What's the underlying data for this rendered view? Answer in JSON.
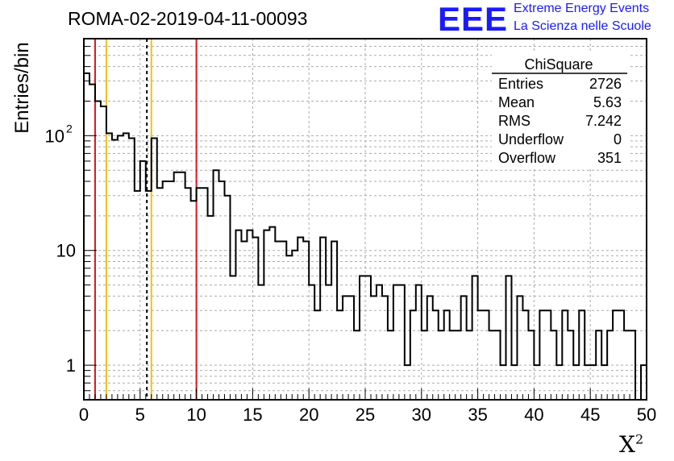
{
  "header": {
    "title": "ROMA-02-2019-04-11-00093",
    "logo_mark": "EEE",
    "logo_line1": "Extreme Energy Events",
    "logo_line2": "La Scienza nelle Scuole"
  },
  "colors": {
    "red": "#e0141e",
    "yellow": "#f0c018",
    "logo": "#1a1aff"
  },
  "chart_data": {
    "type": "histogram",
    "xlabel": "X",
    "xlabel_sup": "2",
    "ylabel": "Entries/bin",
    "xlim": [
      0,
      50
    ],
    "ylim": [
      0.5,
      700
    ],
    "yscale": "log",
    "grid": true,
    "bin_width": 0.5,
    "xticks": [
      "0",
      "5",
      "10",
      "15",
      "20",
      "25",
      "30",
      "35",
      "40",
      "45",
      "50"
    ],
    "yticks": [
      {
        "value": 1,
        "label": "1"
      },
      {
        "value": 10,
        "label": "10"
      },
      {
        "value": 100,
        "label": "10",
        "sup": "2"
      }
    ],
    "values": [
      350,
      280,
      200,
      180,
      105,
      92,
      100,
      105,
      95,
      33,
      60,
      33,
      95,
      35,
      40,
      40,
      48,
      48,
      35,
      27,
      35,
      35,
      20,
      50,
      40,
      30,
      6,
      15,
      12,
      15,
      13,
      5,
      15,
      16,
      12,
      12,
      9,
      10,
      13,
      12,
      5,
      3,
      13,
      5,
      12,
      3,
      4,
      4,
      2,
      6,
      6,
      4,
      5,
      4,
      2,
      5,
      5,
      1,
      3,
      5,
      2,
      4,
      3,
      2,
      3,
      2,
      2,
      4,
      2,
      6,
      3,
      3,
      2,
      2,
      1,
      6,
      1,
      4,
      3,
      2,
      1,
      3,
      3,
      2,
      1,
      3,
      2,
      1,
      3,
      1,
      1,
      2,
      1,
      2,
      3,
      3,
      2,
      2,
      0.5,
      1
    ],
    "vlines": [
      {
        "x": 1.0,
        "color": "red",
        "style": "solid"
      },
      {
        "x": 2.0,
        "color": "yellow",
        "style": "solid"
      },
      {
        "x": 5.6,
        "color": "black",
        "style": "dashed"
      },
      {
        "x": 6.0,
        "color": "yellow",
        "style": "solid"
      },
      {
        "x": 10.0,
        "color": "red",
        "style": "solid"
      }
    ],
    "stats": {
      "title": "ChiSquare",
      "rows": [
        {
          "label": "Entries",
          "value": "2726"
        },
        {
          "label": "Mean",
          "value": "5.63"
        },
        {
          "label": "RMS",
          "value": "7.242"
        },
        {
          "label": "Underflow",
          "value": "0"
        },
        {
          "label": "Overflow",
          "value": "351"
        }
      ]
    }
  }
}
